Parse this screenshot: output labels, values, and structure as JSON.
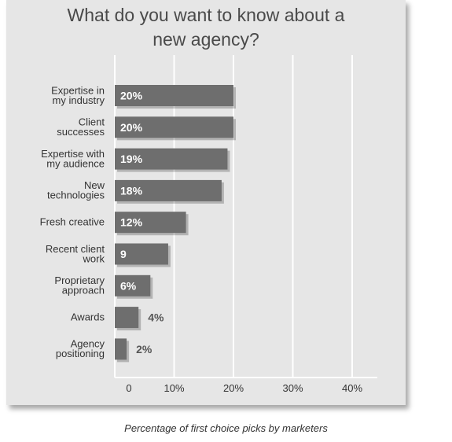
{
  "chart_data": {
    "type": "bar",
    "orientation": "horizontal",
    "title_lines": [
      "What do you want to know about a",
      "new agency?"
    ],
    "categories": [
      [
        "Expertise in",
        "my industry"
      ],
      [
        "Client",
        "successes"
      ],
      [
        "Expertise with",
        "my audience"
      ],
      [
        "New",
        "technologies"
      ],
      [
        "Fresh creative"
      ],
      [
        "Recent client",
        "work"
      ],
      [
        "Proprietary",
        "approach"
      ],
      [
        "Awards"
      ],
      [
        "Agency",
        "positioning"
      ]
    ],
    "values": [
      20,
      20,
      19,
      18,
      12,
      9,
      6,
      4,
      2
    ],
    "value_labels": [
      "20%",
      "20%",
      "19%",
      "18%",
      "12%",
      "9",
      "6%",
      "4%",
      "2%"
    ],
    "xticks": [
      0,
      10,
      20,
      30,
      40
    ],
    "xtick_labels": [
      "0",
      "10%",
      "20%",
      "30%",
      "40%"
    ],
    "xlim": [
      0,
      44
    ],
    "grid": true,
    "caption": "Percentage of first choice picks by marketers",
    "colors": {
      "bar": "#6e6e6e",
      "panel": "#e6e6e6",
      "grid": "#ffffff",
      "text": "#333333"
    }
  }
}
